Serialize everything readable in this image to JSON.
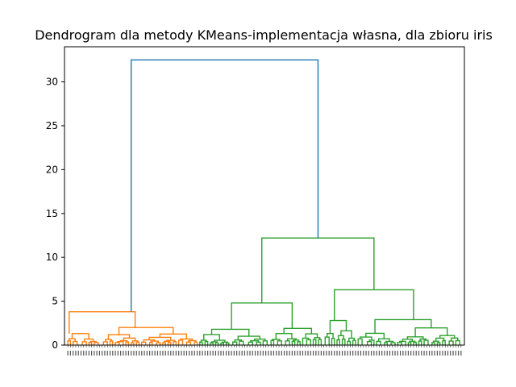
{
  "chart_data": {
    "type": "dendrogram",
    "title": "Dendrogram dla metody KMeans-implementacja własna, dla zbioru iris",
    "xlabel": "",
    "ylabel": "",
    "ylim": [
      0,
      34
    ],
    "yticks": [
      0,
      5,
      10,
      15,
      20,
      25,
      30
    ],
    "colors": {
      "orange": "#ff7f0e",
      "green": "#2ca02c",
      "blue": "#1f77b4"
    },
    "leaf_count": 150,
    "merges": [
      {
        "color": "orange",
        "height": 3.8,
        "left": 0.5,
        "right": 25.5,
        "left_h": 1.3,
        "right_h": 2.0
      },
      {
        "color": "green",
        "height": 4.8,
        "left": 62,
        "right": 85,
        "left_h": 1.8,
        "right_h": 1.9
      },
      {
        "color": "green",
        "height": 6.3,
        "left": 101,
        "right": 131,
        "left_h": 2.8,
        "right_h": 2.9
      },
      {
        "color": "green",
        "height": 12.2,
        "left": 73.5,
        "right": 116,
        "left_h": 4.8,
        "right_h": 6.3
      },
      {
        "color": "blue",
        "height": 32.5,
        "left": 24,
        "right": 94.8,
        "left_h": 3.8,
        "right_h": 12.2
      }
    ]
  }
}
